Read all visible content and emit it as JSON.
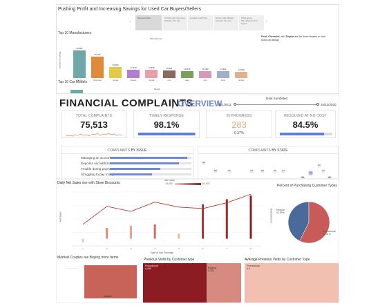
{
  "panel1": {
    "title": "Pushing Profit and Increasing Savings for Used Car Buyers/Sellers",
    "story_tabs": [
      "Selected Data",
      "All Cars are Inspected Reliable Sha and",
      "Location and Price",
      "Explore the Mileage between the cars",
      "What about Manufacturer and Type?"
    ],
    "nav_prev": "‹",
    "nav_next": "›",
    "top_manufacturers_title": "Top 10 Manufacturers",
    "chart_small_title": "Manufacturer",
    "y_axis_label": "Number of Listings",
    "x_axis_label": "Model",
    "top_models_title": "Top 10 Car Models",
    "callout_bold_1": "Ford",
    "callout_sep_1": ", ",
    "callout_bold_2": "Chevrolet",
    "callout_sep_2": ", and ",
    "callout_bold_3": "Toyota",
    "callout_rest": " are the three leaders in total used car listings"
  },
  "panel2": {
    "title": "FINANCIAL COMPLAINTS",
    "divider": "|",
    "subtitle": "OVERVIEW",
    "date_label": "Date Sumbitted",
    "date_start": "10/1/2011",
    "date_end": "10/13/2020",
    "kpis": [
      {
        "label": "TOTAL COMPLAINTS",
        "value": "75,513",
        "sub": ""
      },
      {
        "label": "TIMELY RESPONSE",
        "value": "98.1%",
        "sub": ""
      },
      {
        "label": "IN PROGRESS",
        "value": "283",
        "sub": "0.37%"
      },
      {
        "label": "RESOLVED AT NO COST",
        "value": "84.5%",
        "sub": ""
      }
    ],
    "timely_response_fill": 0.981,
    "resolved_fill": 0.845,
    "issue_title_a": "COMPLAINTS ",
    "issue_title_b": "BY ISSUE",
    "issues": [
      {
        "label": "Managing an account",
        "fill": 0.95
      },
      {
        "label": "Deposits and withdrawals",
        "fill": 0.85
      },
      {
        "label": "Trouble during payment p...",
        "fill": 0.62
      },
      {
        "label": "Struggling to pay mortga...",
        "fill": 0.52
      }
    ],
    "state_title_a": "COMPLAINTS ",
    "state_title_b": "BY STATE",
    "states": [
      "WA",
      "MN",
      "NY",
      "CO",
      "MO",
      "PA",
      "NJ",
      "CA",
      "NC",
      "TX",
      "GA",
      "FL"
    ]
  },
  "panel3": {
    "daily_title_a": "Daily Net Sales",
    "daily_title_b": " rise with ",
    "daily_title_c": "Store Discounts",
    "legend_label": "Net Sales",
    "legend_min": "-13,019",
    "legend_max": "61,178",
    "y_left_label": "Net Sales",
    "y_right_label": "Total Discount",
    "x_label": "Date of Day Purchase",
    "pie_title": "Percent of Purchasing Customer Types",
    "pie_regular_label": "Regular",
    "pie_regular_value": "42.69%",
    "pie_promo_label": "Promotional",
    "pie_promo_value": "57.31%",
    "married_title": "Married Couples are Buying more Items",
    "married_bar_label": "Married",
    "prev_visits_title_a": "Previous Visits",
    "prev_visits_title_b": " by Customer type",
    "prev_promo_label": "Promotional",
    "prev_promo_value": "4,469",
    "prev_regular_label": "Regular",
    "prev_regular_value": "3,324",
    "avg_prev_title_a": "Average Previous Visits",
    "avg_prev_title_b": " by Customer Type",
    "avg_promo_label": "Promotional",
    "avg_promo_value": "4.4"
  },
  "chart_data": [
    {
      "type": "bar",
      "title": "Manufacturer",
      "xlabel": "Model",
      "ylabel": "Number of Listings",
      "categories": [
        "ford",
        "chevrolet",
        "toyota",
        "nissan",
        "honda",
        "ram",
        "jeep",
        "gmc",
        "bmw",
        "dodge"
      ],
      "values": [
        61481,
        46790,
        24384,
        17573,
        17538,
        16821,
        15676,
        15183,
        14931,
        14099
      ],
      "value_labels": [
        "61,481",
        "46,790",
        "24,384",
        "17,573",
        "17,538",
        "16,821",
        "15,676",
        "15,183",
        "14,931",
        "14,099"
      ],
      "colors": [
        "#6fa8a8",
        "#e08a3e",
        "#e3c84a",
        "#b07fd0",
        "#e8a0a8",
        "#8a6a5a",
        "#7aa060",
        "#d898b8",
        "#a0b0c8",
        "#e0b090"
      ]
    },
    {
      "type": "bar",
      "title": "Daily Net Sales rise with Store Discounts",
      "xlabel": "Date of Day Purchase",
      "ylabel": "Net Sales",
      "x": [
        1,
        2,
        3,
        4,
        5,
        6,
        7,
        8
      ],
      "values": [
        -5000,
        15000,
        18000,
        20000,
        7000,
        48000,
        55000,
        60000
      ],
      "series_line": [
        20000,
        45000,
        38000,
        51000,
        44000,
        42000,
        50000,
        62000
      ],
      "colors": [
        "#f2c4b2",
        "#e08a78",
        "#e8a090",
        "#d07060",
        "#f0b8a8",
        "#b03030",
        "#a82828",
        "#8b1c24"
      ]
    },
    {
      "type": "pie",
      "title": "Percent of Purchasing Customer Types",
      "categories": [
        "Regular",
        "Promotional"
      ],
      "values": [
        42.69,
        57.31
      ],
      "colors": [
        "#4a6a9a",
        "#c85a58"
      ]
    }
  ]
}
